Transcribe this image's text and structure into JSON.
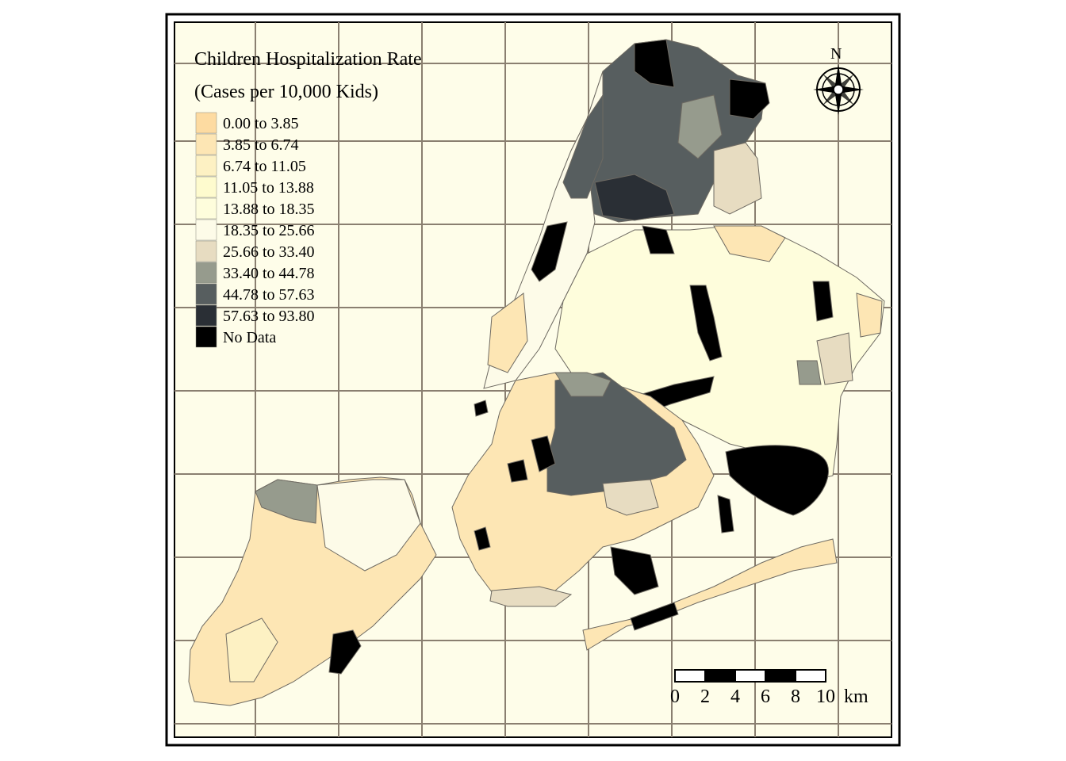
{
  "map": {
    "title_line1": "Children Hospitalization Rate",
    "title_line2": "(Cases per 10,000 Kids)",
    "background_color": "#fefde9",
    "grid_color": "#8a7f70",
    "north_label": "N",
    "north_icon": "compass-rose-icon"
  },
  "legend": {
    "items": [
      {
        "label": "0.00 to 3.85",
        "color": "#fddba1"
      },
      {
        "label": "3.85 to 6.74",
        "color": "#fde6b4"
      },
      {
        "label": "6.74 to 11.05",
        "color": "#fdf1c3"
      },
      {
        "label": "11.05 to 13.88",
        "color": "#fefbce"
      },
      {
        "label": "13.88 to 18.35",
        "color": "#fefddc"
      },
      {
        "label": "18.35 to 25.66",
        "color": "#fdfbe8"
      },
      {
        "label": "25.66 to 33.40",
        "color": "#e7dcc1"
      },
      {
        "label": "33.40 to 44.78",
        "color": "#969b8d"
      },
      {
        "label": "44.78 to 57.63",
        "color": "#575e5f"
      },
      {
        "label": "57.63 to 93.80",
        "color": "#2a2f35"
      },
      {
        "label": "No Data",
        "color": "#000000"
      }
    ]
  },
  "scale_bar": {
    "ticks": [
      "0",
      "2",
      "4",
      "6",
      "8",
      "10"
    ],
    "unit": "km"
  }
}
